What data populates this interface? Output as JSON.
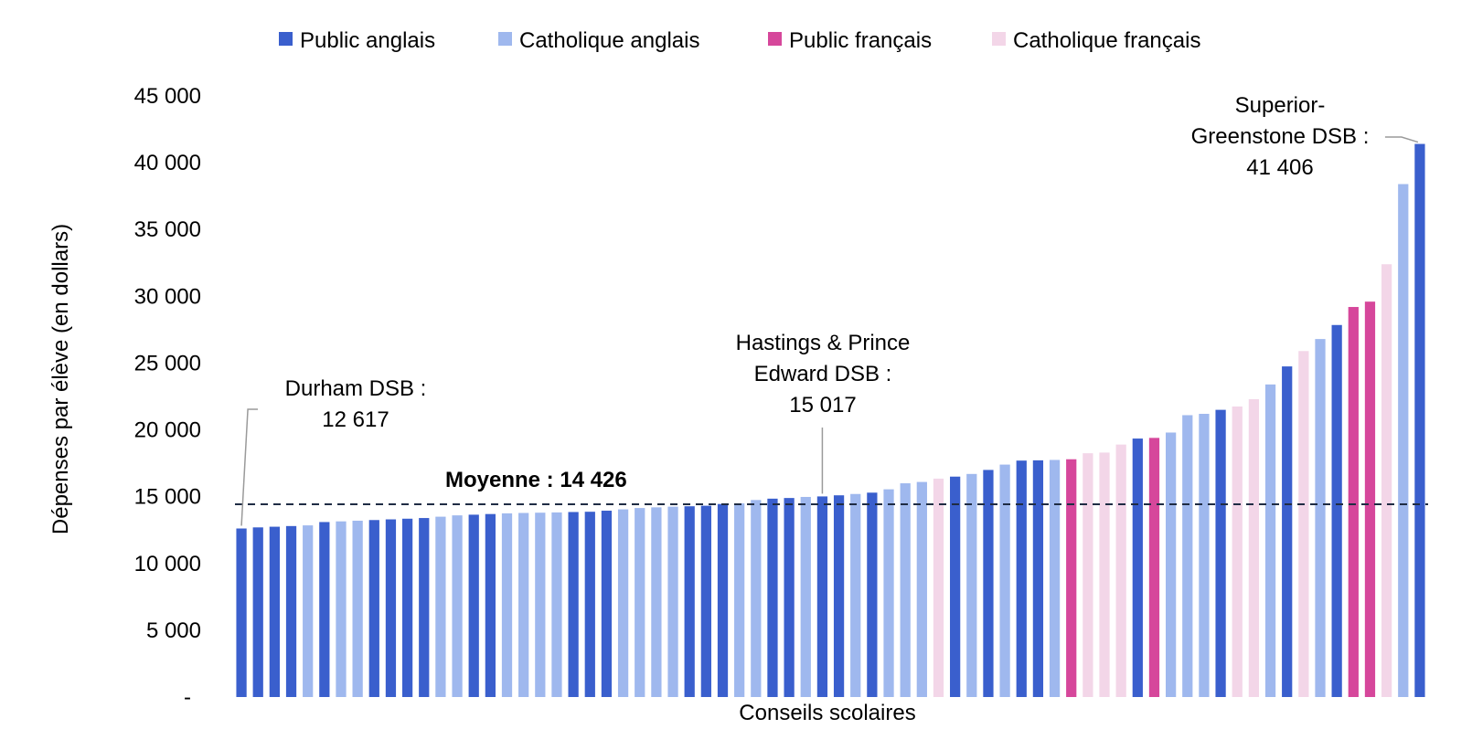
{
  "chart_data": {
    "type": "bar",
    "xlabel": "Conseils scolaires",
    "ylabel": "Dépenses par élève (en dollars)",
    "ylim": [
      0,
      45000
    ],
    "y_ticks": [
      {
        "value": 0,
        "label": "-"
      },
      {
        "value": 5000,
        "label": "5 000"
      },
      {
        "value": 10000,
        "label": "10 000"
      },
      {
        "value": 15000,
        "label": "15 000"
      },
      {
        "value": 20000,
        "label": "20 000"
      },
      {
        "value": 25000,
        "label": "25 000"
      },
      {
        "value": 30000,
        "label": "30 000"
      },
      {
        "value": 35000,
        "label": "35 000"
      },
      {
        "value": 40000,
        "label": "40 000"
      },
      {
        "value": 45000,
        "label": "45 000"
      }
    ],
    "grid": false,
    "legend_position": "top",
    "legend": [
      {
        "key": "PA",
        "label": "Public anglais",
        "color": "#3a5fcd"
      },
      {
        "key": "CA",
        "label": "Catholique anglais",
        "color": "#9fb8ee"
      },
      {
        "key": "PF",
        "label": "Public français",
        "color": "#d6479b"
      },
      {
        "key": "CF",
        "label": "Catholique français",
        "color": "#f3d6e8"
      }
    ],
    "bars": [
      {
        "type": "PA",
        "value": 12617
      },
      {
        "type": "PA",
        "value": 12700
      },
      {
        "type": "PA",
        "value": 12750
      },
      {
        "type": "PA",
        "value": 12800
      },
      {
        "type": "CA",
        "value": 12850
      },
      {
        "type": "PA",
        "value": 13100
      },
      {
        "type": "CA",
        "value": 13150
      },
      {
        "type": "CA",
        "value": 13200
      },
      {
        "type": "PA",
        "value": 13250
      },
      {
        "type": "PA",
        "value": 13300
      },
      {
        "type": "PA",
        "value": 13350
      },
      {
        "type": "PA",
        "value": 13400
      },
      {
        "type": "CA",
        "value": 13500
      },
      {
        "type": "CA",
        "value": 13600
      },
      {
        "type": "PA",
        "value": 13650
      },
      {
        "type": "PA",
        "value": 13700
      },
      {
        "type": "CA",
        "value": 13750
      },
      {
        "type": "CA",
        "value": 13780
      },
      {
        "type": "CA",
        "value": 13800
      },
      {
        "type": "CA",
        "value": 13820
      },
      {
        "type": "PA",
        "value": 13850
      },
      {
        "type": "PA",
        "value": 13870
      },
      {
        "type": "PA",
        "value": 13950
      },
      {
        "type": "CA",
        "value": 14050
      },
      {
        "type": "CA",
        "value": 14150
      },
      {
        "type": "CA",
        "value": 14200
      },
      {
        "type": "CA",
        "value": 14250
      },
      {
        "type": "PA",
        "value": 14280
      },
      {
        "type": "PA",
        "value": 14320
      },
      {
        "type": "PA",
        "value": 14450
      },
      {
        "type": "CA",
        "value": 14500
      },
      {
        "type": "CA",
        "value": 14750
      },
      {
        "type": "PA",
        "value": 14850
      },
      {
        "type": "PA",
        "value": 14900
      },
      {
        "type": "CA",
        "value": 14980
      },
      {
        "type": "PA",
        "value": 15017
      },
      {
        "type": "PA",
        "value": 15100
      },
      {
        "type": "CA",
        "value": 15200
      },
      {
        "type": "PA",
        "value": 15300
      },
      {
        "type": "CA",
        "value": 15550
      },
      {
        "type": "CA",
        "value": 16000
      },
      {
        "type": "CA",
        "value": 16100
      },
      {
        "type": "CF",
        "value": 16350
      },
      {
        "type": "PA",
        "value": 16500
      },
      {
        "type": "CA",
        "value": 16700
      },
      {
        "type": "PA",
        "value": 17000
      },
      {
        "type": "CA",
        "value": 17400
      },
      {
        "type": "PA",
        "value": 17700
      },
      {
        "type": "PA",
        "value": 17720
      },
      {
        "type": "CA",
        "value": 17750
      },
      {
        "type": "PF",
        "value": 17800
      },
      {
        "type": "CF",
        "value": 18250
      },
      {
        "type": "CF",
        "value": 18300
      },
      {
        "type": "CF",
        "value": 18900
      },
      {
        "type": "PA",
        "value": 19350
      },
      {
        "type": "PF",
        "value": 19400
      },
      {
        "type": "CA",
        "value": 19800
      },
      {
        "type": "CA",
        "value": 21100
      },
      {
        "type": "CA",
        "value": 21200
      },
      {
        "type": "PA",
        "value": 21500
      },
      {
        "type": "CF",
        "value": 21750
      },
      {
        "type": "CF",
        "value": 22300
      },
      {
        "type": "CA",
        "value": 23400
      },
      {
        "type": "PA",
        "value": 24750
      },
      {
        "type": "CF",
        "value": 25900
      },
      {
        "type": "CA",
        "value": 26800
      },
      {
        "type": "PA",
        "value": 27850
      },
      {
        "type": "PF",
        "value": 29200
      },
      {
        "type": "PF",
        "value": 29600
      },
      {
        "type": "CF",
        "value": 32400
      },
      {
        "type": "CA",
        "value": 38400
      },
      {
        "type": "PA",
        "value": 41406
      }
    ],
    "average": {
      "value": 14426,
      "label": "Moyenne :  14 426"
    },
    "annotations": [
      {
        "bar_index": 0,
        "lines": [
          "Durham DSB :",
          "12 617"
        ]
      },
      {
        "bar_index": 35,
        "lines": [
          "Hastings & Prince",
          "Edward DSB :",
          "15 017"
        ]
      },
      {
        "bar_index": 71,
        "lines": [
          "Superior-",
          "Greenstone DSB :",
          "41 406"
        ]
      }
    ]
  }
}
